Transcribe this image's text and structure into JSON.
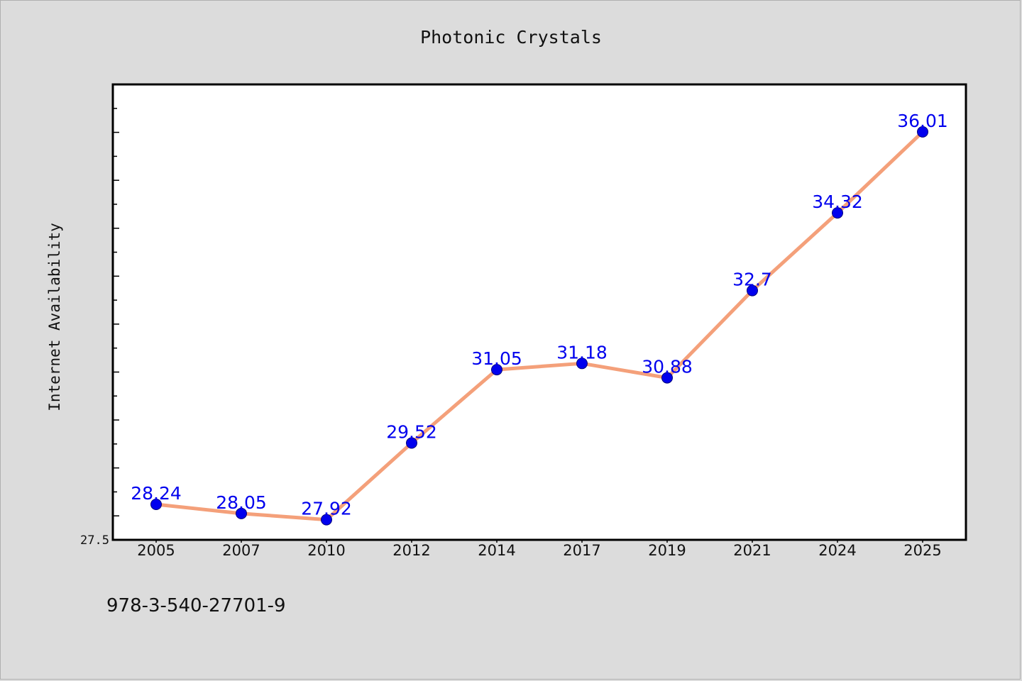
{
  "chart_data": {
    "type": "line",
    "title": "Photonic Crystals",
    "xlabel": "",
    "ylabel": "Internet Availability",
    "categories": [
      "2005",
      "2007",
      "2010",
      "2012",
      "2014",
      "2017",
      "2019",
      "2021",
      "2024",
      "2025"
    ],
    "series": [
      {
        "values": [
          28.24,
          28.05,
          27.92,
          29.52,
          31.05,
          31.18,
          30.88,
          32.7,
          34.32,
          36.01
        ],
        "data_labels": [
          "28.24",
          "28.05",
          "27.92",
          "29.52",
          "31.05",
          "31.18",
          "30.88",
          "32.7",
          "34.32",
          "36.01"
        ],
        "line_color": "#f4a07a",
        "marker_color": "#0000ee"
      }
    ],
    "ylim": [
      27.5,
      37.0
    ],
    "ytick_labels": [
      "27.5"
    ],
    "grid": false,
    "legend": "none"
  },
  "footer": {
    "text": "978-3-540-27701-9"
  }
}
